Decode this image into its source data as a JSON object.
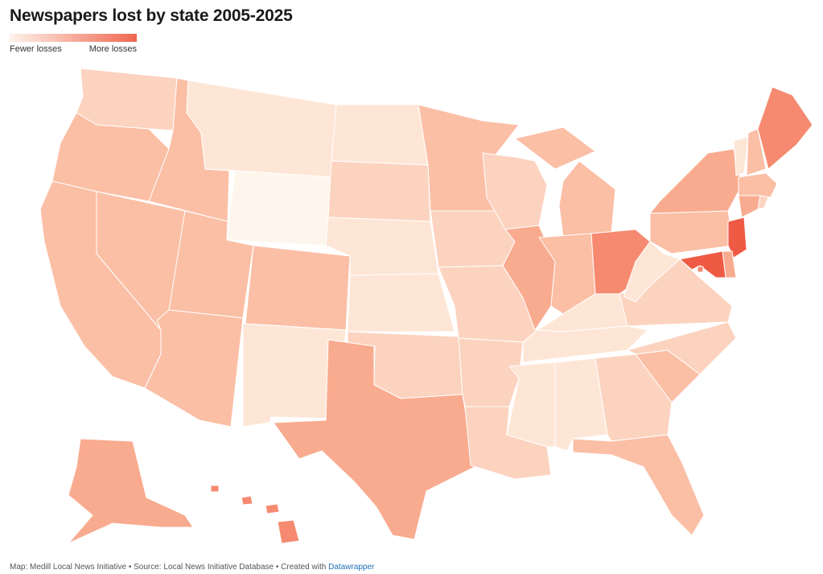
{
  "title": "Newspapers lost by state 2005-2025",
  "legend": {
    "low_label": "Fewer losses",
    "high_label": "More losses",
    "color_low": "#fef3ea",
    "color_high": "#ef6650"
  },
  "footer": {
    "map_credit": "Map: Medill Local News Initiative",
    "separator": " • ",
    "source": "Source: Local News Initiative Database",
    "created_with": "Created with ",
    "tool": "Datawrapper"
  },
  "palette": {
    "l0": "#fef6ec",
    "l1": "#fee6d6",
    "l2": "#fcd3bf",
    "l3": "#fbbfa6",
    "l4": "#f9ab8f",
    "l5": "#f68a70",
    "l6": "#ef5a45"
  },
  "states": [
    {
      "code": "WA",
      "level": 2
    },
    {
      "code": "OR",
      "level": 3
    },
    {
      "code": "CA",
      "level": 3
    },
    {
      "code": "ID",
      "level": 3
    },
    {
      "code": "NV",
      "level": 3
    },
    {
      "code": "MT",
      "level": 1
    },
    {
      "code": "WY",
      "level": 0
    },
    {
      "code": "UT",
      "level": 3
    },
    {
      "code": "AZ",
      "level": 3
    },
    {
      "code": "CO",
      "level": 3
    },
    {
      "code": "NM",
      "level": 1
    },
    {
      "code": "ND",
      "level": 1
    },
    {
      "code": "SD",
      "level": 2
    },
    {
      "code": "NE",
      "level": 1
    },
    {
      "code": "KS",
      "level": 1
    },
    {
      "code": "OK",
      "level": 2
    },
    {
      "code": "TX",
      "level": 4
    },
    {
      "code": "MN",
      "level": 3
    },
    {
      "code": "IA",
      "level": 2
    },
    {
      "code": "MO",
      "level": 2
    },
    {
      "code": "AR",
      "level": 2
    },
    {
      "code": "LA",
      "level": 2
    },
    {
      "code": "WI",
      "level": 2
    },
    {
      "code": "IL",
      "level": 4
    },
    {
      "code": "MI",
      "level": 3
    },
    {
      "code": "IN",
      "level": 3
    },
    {
      "code": "OH",
      "level": 5
    },
    {
      "code": "KY",
      "level": 1
    },
    {
      "code": "TN",
      "level": 1
    },
    {
      "code": "MS",
      "level": 1
    },
    {
      "code": "AL",
      "level": 1
    },
    {
      "code": "GA",
      "level": 2
    },
    {
      "code": "FL",
      "level": 3
    },
    {
      "code": "SC",
      "level": 3
    },
    {
      "code": "NC",
      "level": 2
    },
    {
      "code": "VA",
      "level": 2
    },
    {
      "code": "WV",
      "level": 1
    },
    {
      "code": "PA",
      "level": 3
    },
    {
      "code": "NY",
      "level": 4
    },
    {
      "code": "VT",
      "level": 1
    },
    {
      "code": "NH",
      "level": 3
    },
    {
      "code": "ME",
      "level": 5
    },
    {
      "code": "MA",
      "level": 3
    },
    {
      "code": "CT",
      "level": 4
    },
    {
      "code": "RI",
      "level": 2
    },
    {
      "code": "NJ",
      "level": 6
    },
    {
      "code": "DE",
      "level": 4
    },
    {
      "code": "MD",
      "level": 6
    },
    {
      "code": "DC",
      "level": 5
    },
    {
      "code": "AK",
      "level": 4
    },
    {
      "code": "HI",
      "level": 5
    }
  ]
}
